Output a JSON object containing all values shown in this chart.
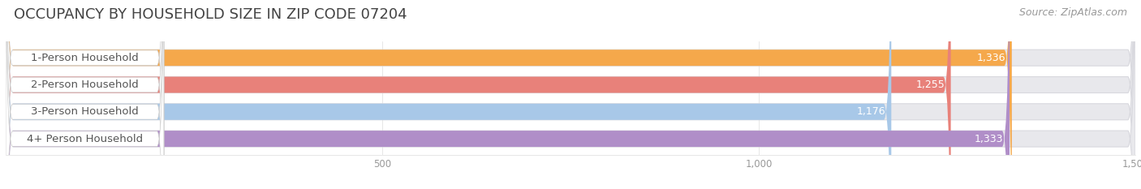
{
  "title": "OCCUPANCY BY HOUSEHOLD SIZE IN ZIP CODE 07204",
  "source": "Source: ZipAtlas.com",
  "categories": [
    "1-Person Household",
    "2-Person Household",
    "3-Person Household",
    "4+ Person Household"
  ],
  "values": [
    1336,
    1255,
    1176,
    1333
  ],
  "bar_colors": [
    "#F5A84B",
    "#E8817A",
    "#A8C8E8",
    "#B08EC8"
  ],
  "bar_bg_color": "#E8E8EC",
  "label_bg_color": "#FFFFFF",
  "label_text_color": "#555555",
  "value_text_color": "#FFFFFF",
  "xlim": [
    0,
    1500
  ],
  "xticks": [
    500,
    1000,
    1500
  ],
  "title_fontsize": 13,
  "label_fontsize": 9.5,
  "value_fontsize": 9,
  "source_fontsize": 9,
  "background_color": "#ffffff",
  "title_color": "#444444",
  "source_color": "#999999",
  "tick_color": "#999999"
}
